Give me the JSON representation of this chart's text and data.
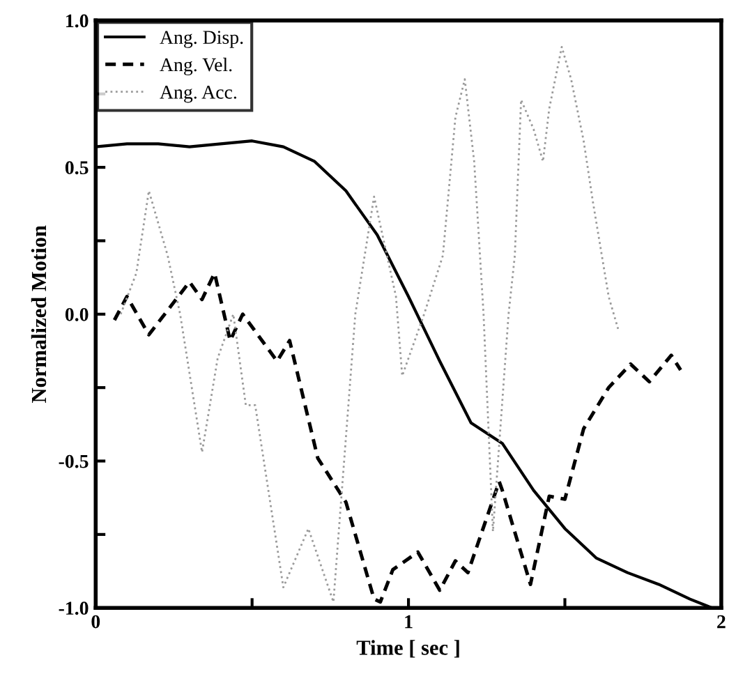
{
  "chart_data": {
    "type": "line",
    "xlabel": "Time [ sec ]",
    "ylabel": "Normalized Motion",
    "xlim": [
      0,
      2
    ],
    "ylim": [
      -1,
      1
    ],
    "xticks": [
      0,
      {
        "value": 0.5,
        "label": null
      },
      1,
      {
        "value": 1.5,
        "label": null
      },
      2
    ],
    "yticks": [
      {
        "value": -1,
        "label": "-1.0"
      },
      {
        "value": -0.75,
        "label": null
      },
      -0.5,
      {
        "value": -0.25,
        "label": null
      },
      {
        "value": 0,
        "label": "0.0"
      },
      {
        "value": 0.25,
        "label": null
      },
      0.5,
      {
        "value": 0.75,
        "label": null
      },
      {
        "value": 1,
        "label": "1.0"
      }
    ],
    "legend": "top left",
    "grid": false,
    "series": [
      {
        "name": "Ang. Disp.",
        "color": "#000000",
        "line_style": "solid",
        "x": [
          0.0,
          0.1,
          0.2,
          0.3,
          0.4,
          0.5,
          0.6,
          0.7,
          0.8,
          0.9,
          1.0,
          1.1,
          1.2,
          1.3,
          1.4,
          1.5,
          1.6,
          1.7,
          1.8,
          1.9,
          1.97
        ],
        "values": [
          0.57,
          0.58,
          0.58,
          0.57,
          0.58,
          0.59,
          0.57,
          0.52,
          0.42,
          0.27,
          0.06,
          -0.16,
          -0.37,
          -0.44,
          -0.6,
          -0.73,
          -0.83,
          -0.88,
          -0.92,
          -0.97,
          -1.0
        ]
      },
      {
        "name": "Ang. Vel.",
        "color": "#000000",
        "line_style": "dashed",
        "x": [
          0.06,
          0.1,
          0.17,
          0.3,
          0.34,
          0.38,
          0.43,
          0.47,
          0.58,
          0.62,
          0.71,
          0.8,
          0.89,
          0.91,
          0.95,
          1.03,
          1.1,
          1.15,
          1.19,
          1.29,
          1.3,
          1.39,
          1.45,
          1.5,
          1.56,
          1.64,
          1.71,
          1.77,
          1.84,
          1.87
        ],
        "values": [
          -0.02,
          0.06,
          -0.07,
          0.11,
          0.05,
          0.14,
          -0.09,
          0.0,
          -0.16,
          -0.09,
          -0.49,
          -0.64,
          -0.97,
          -0.98,
          -0.87,
          -0.81,
          -0.94,
          -0.84,
          -0.88,
          -0.57,
          -0.6,
          -0.92,
          -0.62,
          -0.63,
          -0.39,
          -0.25,
          -0.17,
          -0.23,
          -0.14,
          -0.19
        ]
      },
      {
        "name": "Ang. Acc.",
        "color": "#9a9a9a",
        "line_style": "dotted",
        "x": [
          0.08,
          0.13,
          0.17,
          0.23,
          0.27,
          0.34,
          0.39,
          0.44,
          0.48,
          0.51,
          0.6,
          0.68,
          0.76,
          0.83,
          0.89,
          0.96,
          0.98,
          1.05,
          1.11,
          1.15,
          1.18,
          1.21,
          1.22,
          1.24,
          1.27,
          1.32,
          1.34,
          1.36,
          1.4,
          1.43,
          1.45,
          1.49,
          1.52,
          1.56,
          1.59,
          1.64,
          1.67
        ],
        "values": [
          0.0,
          0.14,
          0.42,
          0.2,
          0.0,
          -0.47,
          -0.15,
          0.0,
          -0.31,
          -0.31,
          -0.93,
          -0.73,
          -0.98,
          0.0,
          0.4,
          0.06,
          -0.21,
          0.0,
          0.2,
          0.67,
          0.8,
          0.52,
          0.35,
          0.0,
          -0.74,
          0.0,
          0.2,
          0.73,
          0.63,
          0.52,
          0.7,
          0.91,
          0.8,
          0.59,
          0.38,
          0.06,
          -0.05
        ]
      }
    ]
  }
}
